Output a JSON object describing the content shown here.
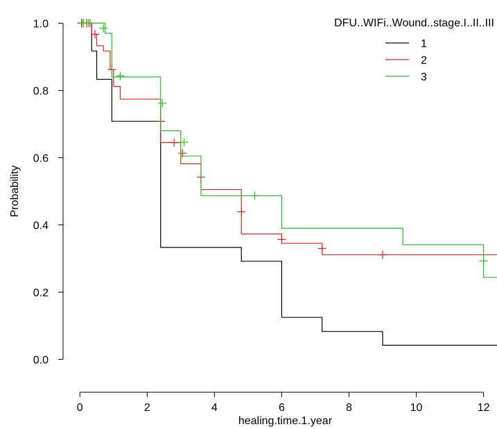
{
  "chart_data": {
    "type": "line",
    "subtype": "step",
    "xlabel": "healing.time.1.year",
    "ylabel": "Probability",
    "xlim": [
      -0.5,
      12.4
    ],
    "ylim": [
      -0.04,
      1.04
    ],
    "xticks": [
      0,
      2,
      4,
      6,
      8,
      10,
      12
    ],
    "xtick_labels": [
      "0",
      "2",
      "4",
      "6",
      "8",
      "10",
      "12"
    ],
    "yticks": [
      0.0,
      0.2,
      0.4,
      0.6,
      0.8,
      1.0
    ],
    "ytick_labels": [
      "0.0",
      "0.2",
      "0.4",
      "0.6",
      "0.8",
      "1.0"
    ],
    "grid": false,
    "legend": {
      "title": "DFU..WIFi..Wound..stage.I..II..III",
      "placement": "top-right"
    },
    "series": [
      {
        "name": "1",
        "color": "#000000",
        "steps": [
          [
            0,
            1.0
          ],
          [
            0.35,
            0.917
          ],
          [
            0.5,
            0.833
          ],
          [
            0.95,
            0.708
          ],
          [
            2.4,
            0.333
          ],
          [
            4.8,
            0.292
          ],
          [
            6.0,
            0.125
          ],
          [
            7.2,
            0.083
          ],
          [
            9.0,
            0.042
          ],
          [
            12.4,
            0.042
          ]
        ],
        "censored": [
          [
            0.05,
            1.0
          ],
          [
            0.1,
            1.0
          ],
          [
            2.4,
            0.708
          ]
        ]
      },
      {
        "name": "2",
        "color": "#e8221b",
        "steps": [
          [
            0,
            1.0
          ],
          [
            0.35,
            0.967
          ],
          [
            0.5,
            0.933
          ],
          [
            0.7,
            0.917
          ],
          [
            0.9,
            0.862
          ],
          [
            1.0,
            0.812
          ],
          [
            1.2,
            0.774
          ],
          [
            2.4,
            0.645
          ],
          [
            3.0,
            0.582
          ],
          [
            3.6,
            0.505
          ],
          [
            4.8,
            0.373
          ],
          [
            6.0,
            0.345
          ],
          [
            7.2,
            0.311
          ],
          [
            12.4,
            0.311
          ]
        ],
        "censored": [
          [
            0.05,
            1.0
          ],
          [
            0.2,
            1.0
          ],
          [
            0.3,
            1.0
          ],
          [
            0.45,
            0.967
          ],
          [
            0.95,
            0.862
          ],
          [
            2.4,
            0.708
          ],
          [
            2.8,
            0.645
          ],
          [
            3.05,
            0.613
          ],
          [
            3.6,
            0.542
          ],
          [
            4.8,
            0.439
          ],
          [
            6.0,
            0.357
          ],
          [
            7.2,
            0.33
          ],
          [
            9.0,
            0.311
          ]
        ]
      },
      {
        "name": "3",
        "color": "#1dc41d",
        "steps": [
          [
            0,
            1.0
          ],
          [
            0.75,
            0.97
          ],
          [
            0.95,
            0.84
          ],
          [
            2.4,
            0.68
          ],
          [
            3.0,
            0.605
          ],
          [
            3.6,
            0.487
          ],
          [
            6.0,
            0.39
          ],
          [
            9.6,
            0.341
          ],
          [
            12.0,
            0.244
          ],
          [
            12.4,
            0.244
          ]
        ],
        "censored": [
          [
            0.1,
            1.0
          ],
          [
            0.25,
            1.0
          ],
          [
            0.7,
            0.985
          ],
          [
            1.2,
            0.843
          ],
          [
            2.45,
            0.762
          ],
          [
            3.1,
            0.646
          ],
          [
            5.2,
            0.487
          ],
          [
            12.0,
            0.293
          ]
        ]
      }
    ]
  }
}
